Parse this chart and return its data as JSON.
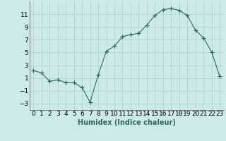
{
  "x": [
    0,
    1,
    2,
    3,
    4,
    5,
    6,
    7,
    8,
    9,
    10,
    11,
    12,
    13,
    14,
    15,
    16,
    17,
    18,
    19,
    20,
    21,
    22,
    23
  ],
  "y": [
    2.2,
    1.8,
    0.5,
    0.7,
    0.3,
    0.3,
    -0.5,
    -2.8,
    1.5,
    5.2,
    6.0,
    7.5,
    7.8,
    8.0,
    9.3,
    10.8,
    11.7,
    11.9,
    11.6,
    10.8,
    8.5,
    7.3,
    5.1,
    1.3
  ],
  "line_color": "#2e6b5e",
  "marker": "+",
  "marker_size": 4,
  "bg_color": "#cdeaea",
  "grid_color": "#b0d4d4",
  "xlabel": "Humidex (Indice chaleur)",
  "ylim": [
    -4,
    13
  ],
  "xlim": [
    -0.5,
    23.5
  ],
  "yticks": [
    -3,
    -1,
    1,
    3,
    5,
    7,
    9,
    11
  ],
  "xlabel_fontsize": 7,
  "tick_fontsize": 6.5
}
